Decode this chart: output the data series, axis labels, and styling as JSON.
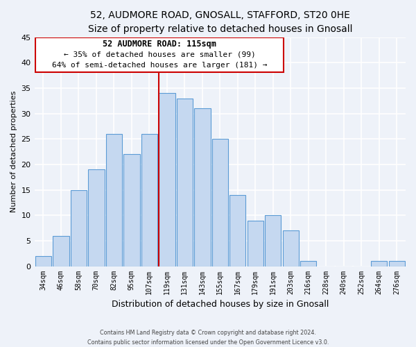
{
  "title": "52, AUDMORE ROAD, GNOSALL, STAFFORD, ST20 0HE",
  "subtitle": "Size of property relative to detached houses in Gnosall",
  "xlabel": "Distribution of detached houses by size in Gnosall",
  "ylabel": "Number of detached properties",
  "bin_labels": [
    "34sqm",
    "46sqm",
    "58sqm",
    "70sqm",
    "82sqm",
    "95sqm",
    "107sqm",
    "119sqm",
    "131sqm",
    "143sqm",
    "155sqm",
    "167sqm",
    "179sqm",
    "191sqm",
    "203sqm",
    "216sqm",
    "228sqm",
    "240sqm",
    "252sqm",
    "264sqm",
    "276sqm"
  ],
  "bin_values": [
    2,
    6,
    15,
    19,
    26,
    22,
    26,
    34,
    33,
    31,
    25,
    14,
    9,
    10,
    7,
    1,
    0,
    0,
    0,
    1,
    1
  ],
  "bar_color": "#c5d8f0",
  "bar_edge_color": "#5b9bd5",
  "property_line_color": "#cc0000",
  "property_line_bin_index": 7,
  "ylim": [
    0,
    45
  ],
  "annotation_title": "52 AUDMORE ROAD: 115sqm",
  "annotation_line1": "← 35% of detached houses are smaller (99)",
  "annotation_line2": "64% of semi-detached houses are larger (181) →",
  "footer1": "Contains HM Land Registry data © Crown copyright and database right 2024.",
  "footer2": "Contains public sector information licensed under the Open Government Licence v3.0.",
  "background_color": "#eef2f9"
}
